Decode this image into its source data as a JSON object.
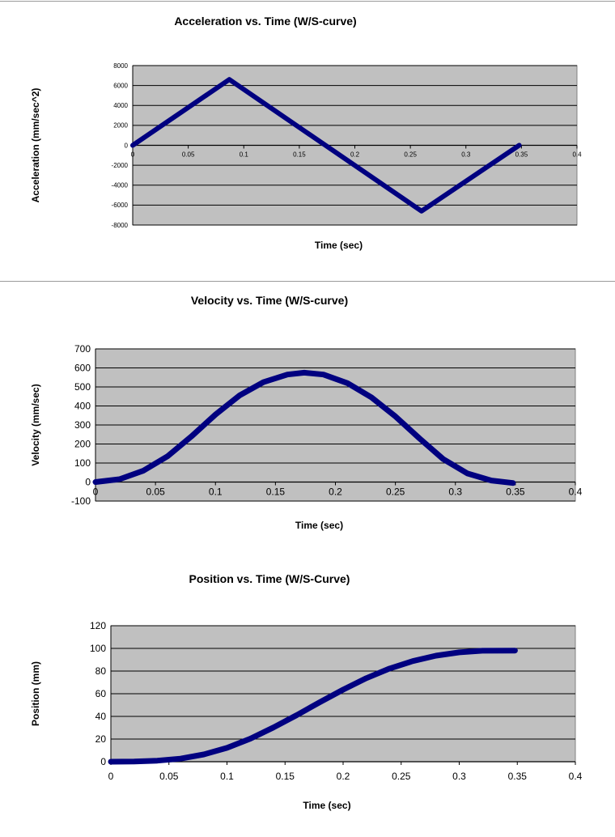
{
  "chart_data": [
    {
      "type": "line",
      "title": "Acceleration vs. Time (W/S-curve)",
      "xlabel": "Time (sec)",
      "ylabel": "Acceleration (mm/sec^2)",
      "xlim": [
        0,
        0.4
      ],
      "ylim": [
        -8000,
        8000
      ],
      "xticks": [
        "0",
        "0.05",
        "0.1",
        "0.15",
        "0.2",
        "0.25",
        "0.3",
        "0.35",
        "0.4"
      ],
      "yticks": [
        "8000",
        "6000",
        "4000",
        "2000",
        "0",
        "-2000",
        "-4000",
        "-6000",
        "-8000"
      ],
      "grid": true,
      "legend": "none",
      "plot_bg": "#c0c0c0",
      "line_color": "#000080",
      "series": [
        {
          "x": [
            0,
            0.087,
            0.26,
            0.348
          ],
          "y": [
            0,
            6600,
            -6600,
            0
          ]
        }
      ]
    },
    {
      "type": "line",
      "title": "Velocity vs. Time (W/S-curve)",
      "xlabel": "Time (sec)",
      "ylabel": "Velocity (mm/sec)",
      "xlim": [
        0,
        0.4
      ],
      "ylim": [
        -100,
        700
      ],
      "xticks": [
        "0",
        "0.05",
        "0.1",
        "0.15",
        "0.2",
        "0.25",
        "0.3",
        "0.35",
        "0.4"
      ],
      "yticks": [
        "700",
        "600",
        "500",
        "400",
        "300",
        "200",
        "100",
        "0",
        "-100"
      ],
      "grid": true,
      "legend": "none",
      "plot_bg": "#c0c0c0",
      "line_color": "#000080",
      "series": [
        {
          "x": [
            0,
            0.02,
            0.04,
            0.06,
            0.08,
            0.1,
            0.12,
            0.14,
            0.16,
            0.174,
            0.19,
            0.21,
            0.23,
            0.25,
            0.27,
            0.29,
            0.31,
            0.33,
            0.348
          ],
          "y": [
            0,
            15,
            60,
            135,
            240,
            355,
            455,
            525,
            565,
            575,
            565,
            520,
            445,
            345,
            230,
            120,
            45,
            8,
            -5
          ]
        }
      ]
    },
    {
      "type": "line",
      "title": "Position vs. Time (W/S-Curve)",
      "xlabel": "Time (sec)",
      "ylabel": "Position (mm)",
      "xlim": [
        0,
        0.4
      ],
      "ylim": [
        0,
        120
      ],
      "xticks": [
        "0",
        "0.05",
        "0.1",
        "0.15",
        "0.2",
        "0.25",
        "0.3",
        "0.35",
        "0.4"
      ],
      "yticks": [
        "120",
        "100",
        "80",
        "60",
        "40",
        "20",
        "0"
      ],
      "grid": true,
      "legend": "none",
      "plot_bg": "#c0c0c0",
      "line_color": "#000080",
      "series": [
        {
          "x": [
            0,
            0.02,
            0.04,
            0.06,
            0.08,
            0.1,
            0.12,
            0.14,
            0.16,
            0.18,
            0.2,
            0.22,
            0.24,
            0.26,
            0.28,
            0.3,
            0.32,
            0.348
          ],
          "y": [
            0,
            0.2,
            0.9,
            2.7,
            6.4,
            12.2,
            20.3,
            30.2,
            41.1,
            52.6,
            63.6,
            73.7,
            82.2,
            88.8,
            93.6,
            96.5,
            97.9,
            98.1
          ]
        }
      ]
    }
  ]
}
